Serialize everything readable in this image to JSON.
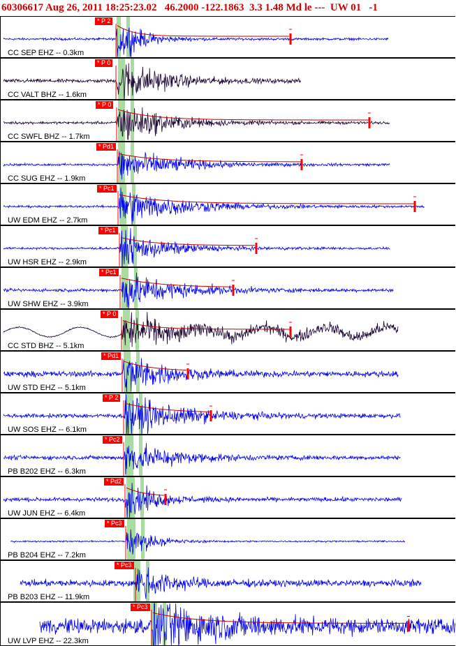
{
  "header": {
    "text": "60306617 Aug 26, 2011 18:25:23.02   46.2000 -122.1863  3.3 1.48 Md le ---  UW 01   -1"
  },
  "colors": {
    "blue": "#0000ee",
    "dark": "#1a0030",
    "pick": "#ff0000",
    "band": "#a8dca0"
  },
  "chart_data": {
    "type": "seismogram",
    "title": "60306617 Aug 26, 2011 18:25:23.02   46.2000 -122.1863  3.3 1.48 Md le ---  UW 01   -1",
    "traces": [
      {
        "label": "CC SEP EHZ -- 0.3km",
        "pick": "* P 2",
        "color": "blue"
      },
      {
        "label": "CC VALT BHZ -- 1.6km",
        "pick": "* P 0",
        "color": "dark"
      },
      {
        "label": "CC SWFL BHZ -- 1.7km",
        "pick": "* P 0",
        "color": "dark"
      },
      {
        "label": "CC SUG EHZ -- 1.9km",
        "pick": "* Pd1",
        "color": "blue"
      },
      {
        "label": "UW EDM EHZ -- 2.7km",
        "pick": "* Pc1",
        "color": "blue"
      },
      {
        "label": "UW HSR EHZ -- 2.9km",
        "pick": "* Pc1",
        "color": "blue"
      },
      {
        "label": "UW SHW EHZ -- 3.9km",
        "pick": "* Pc1",
        "color": "blue"
      },
      {
        "label": "CC STD BHZ -- 5.1km",
        "pick": "* P 0",
        "color": "dark"
      },
      {
        "label": "UW STD EHZ -- 5.1km",
        "pick": "* Pd1",
        "color": "blue"
      },
      {
        "label": "UW SOS EHZ -- 6.1km",
        "pick": "* P 2",
        "color": "blue"
      },
      {
        "label": "PB B202 EHZ -- 6.3km",
        "pick": "* Pc2",
        "color": "blue"
      },
      {
        "label": "UW JUN EHZ -- 6.4km",
        "pick": "* Pd2",
        "color": "blue"
      },
      {
        "label": "PB B204 EHZ -- 7.2km",
        "pick": "* Pc3",
        "color": "blue"
      },
      {
        "label": "PB B203 EHZ -- 11.9km",
        "pick": "* Pc3",
        "color": "blue"
      },
      {
        "label": "UW LVP EHZ -- 22.3km",
        "pick": "* Pc3",
        "color": "blue"
      }
    ]
  }
}
